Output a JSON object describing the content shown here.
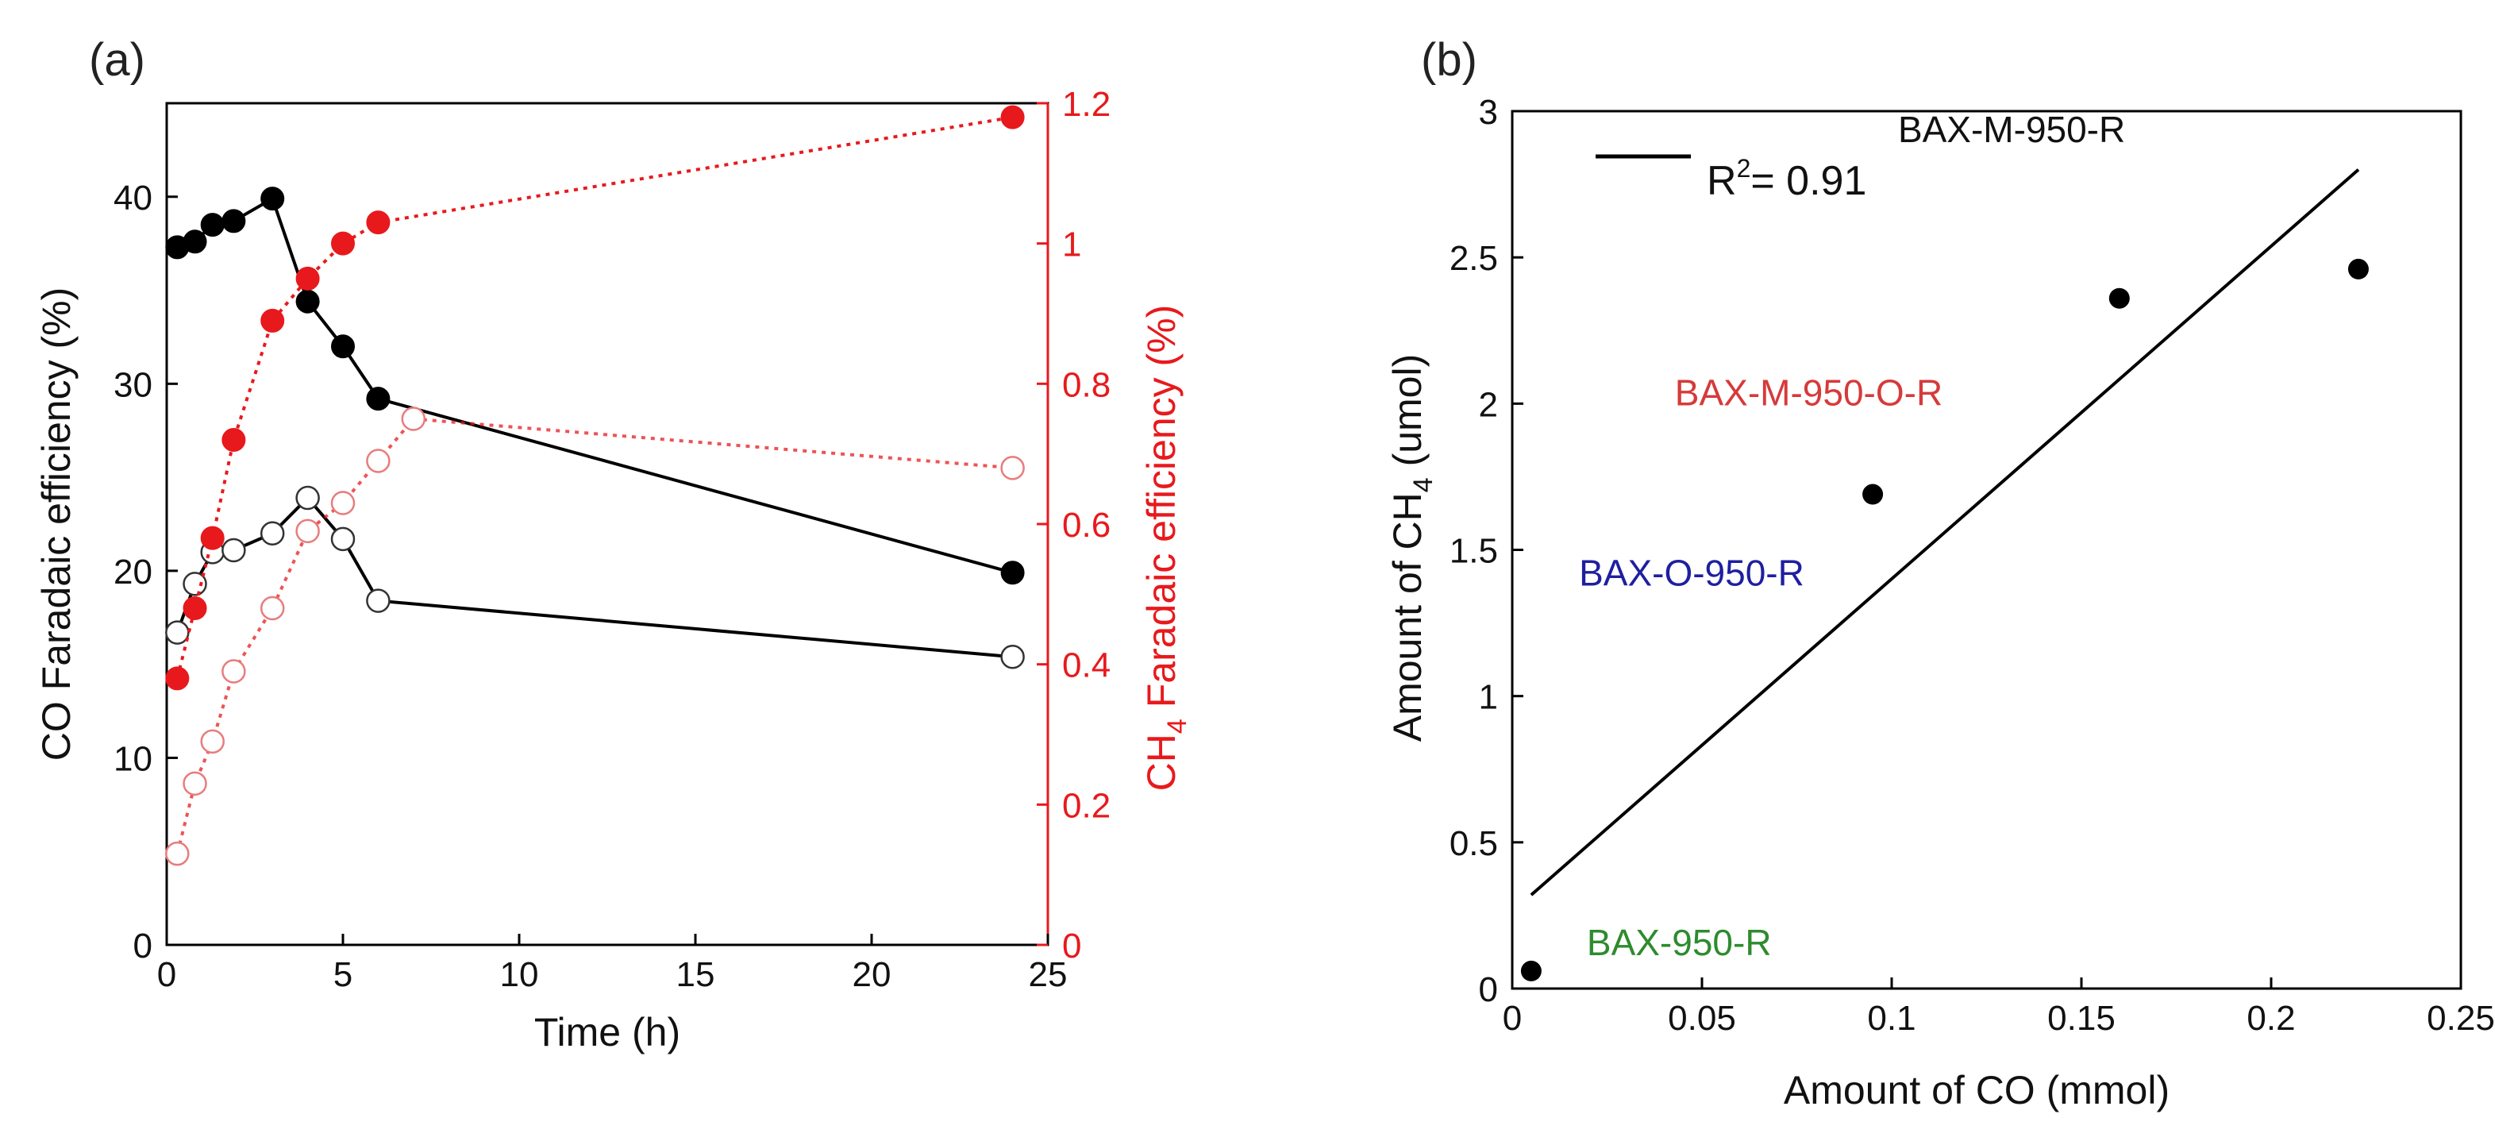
{
  "chart_data": [
    {
      "panel_label": "(a)",
      "type": "line",
      "xlabel": "Time (h)",
      "ylabel": "CO Faradaic efficiency (%)",
      "y2label_main": "CH",
      "y2label_sub": "4",
      "y2label_rest": " Faradaic efficiency (%)",
      "xlim": [
        0,
        25
      ],
      "ylim": [
        0,
        45
      ],
      "y2lim": [
        0,
        1.2
      ],
      "xticks": [
        "0",
        "5",
        "10",
        "15",
        "20",
        "25"
      ],
      "yticks": [
        "0",
        "10",
        "20",
        "30",
        "40"
      ],
      "y2ticks": [
        "0",
        "0.2",
        "0.4",
        "0.6",
        "0.8",
        "1",
        "1.2"
      ],
      "colors": {
        "co": "#000000",
        "ch4": "#e8191c"
      },
      "series": [
        {
          "name": "CO FE (filled)",
          "axis": "left",
          "style": "solid-filled",
          "x": [
            0.3,
            0.8,
            1.3,
            1.9,
            3.0,
            4.0,
            5.0,
            6.0,
            24.0
          ],
          "y": [
            37.3,
            37.6,
            38.5,
            38.7,
            39.9,
            34.4,
            32.0,
            29.2,
            19.9
          ]
        },
        {
          "name": "CO FE (open)",
          "axis": "left",
          "style": "solid-open",
          "x": [
            0.3,
            0.8,
            1.3,
            1.9,
            3.0,
            4.0,
            5.0,
            6.0,
            24.0
          ],
          "y": [
            16.7,
            19.3,
            21.0,
            21.1,
            22.0,
            23.9,
            21.7,
            18.4,
            15.4
          ]
        },
        {
          "name": "CH4 FE (filled)",
          "axis": "right",
          "style": "dotted-filled",
          "x": [
            0.3,
            0.8,
            1.3,
            1.9,
            3.0,
            4.0,
            5.0,
            6.0,
            24.0
          ],
          "y": [
            0.38,
            0.48,
            0.58,
            0.72,
            0.89,
            0.95,
            1.0,
            1.03,
            1.18
          ]
        },
        {
          "name": "CH4 FE (open)",
          "axis": "right",
          "style": "dotted-open",
          "x": [
            0.3,
            0.8,
            1.3,
            1.9,
            3.0,
            4.0,
            5.0,
            6.0,
            7.0,
            24.0
          ],
          "y": [
            0.13,
            0.23,
            0.29,
            0.39,
            0.48,
            0.59,
            0.63,
            0.69,
            0.75,
            0.68
          ]
        }
      ]
    },
    {
      "panel_label": "(b)",
      "type": "scatter",
      "xlabel": "Amount of CO (mmol)",
      "ylabel_main": "Amount of CH",
      "ylabel_sub": "4",
      "ylabel_rest": " (umol)",
      "xlim": [
        0,
        0.25
      ],
      "ylim": [
        0,
        3
      ],
      "xticks": [
        "0",
        "0.05",
        "0.1",
        "0.15",
        "0.2",
        "0.25"
      ],
      "yticks": [
        "0",
        "0.5",
        "1",
        "1.5",
        "2",
        "2.5",
        "3"
      ],
      "legend_prefix": "R",
      "legend_sup": "2",
      "legend_rest": "= 0.91",
      "fit_line": {
        "x": [
          0.005,
          0.223
        ],
        "y": [
          0.32,
          2.8
        ]
      },
      "points": [
        {
          "label": "BAX-950-R",
          "x": 0.005,
          "y": 0.06,
          "color": "#2e8b2e"
        },
        {
          "label": "BAX-O-950-R",
          "x": 0.095,
          "y": 1.69,
          "color": "#1f1fa0"
        },
        {
          "label": "BAX-M-950-O-R",
          "x": 0.16,
          "y": 2.36,
          "color": "#d63a3a"
        },
        {
          "label": "BAX-M-950-R",
          "x": 0.223,
          "y": 2.46,
          "color": "#111111"
        }
      ]
    }
  ]
}
